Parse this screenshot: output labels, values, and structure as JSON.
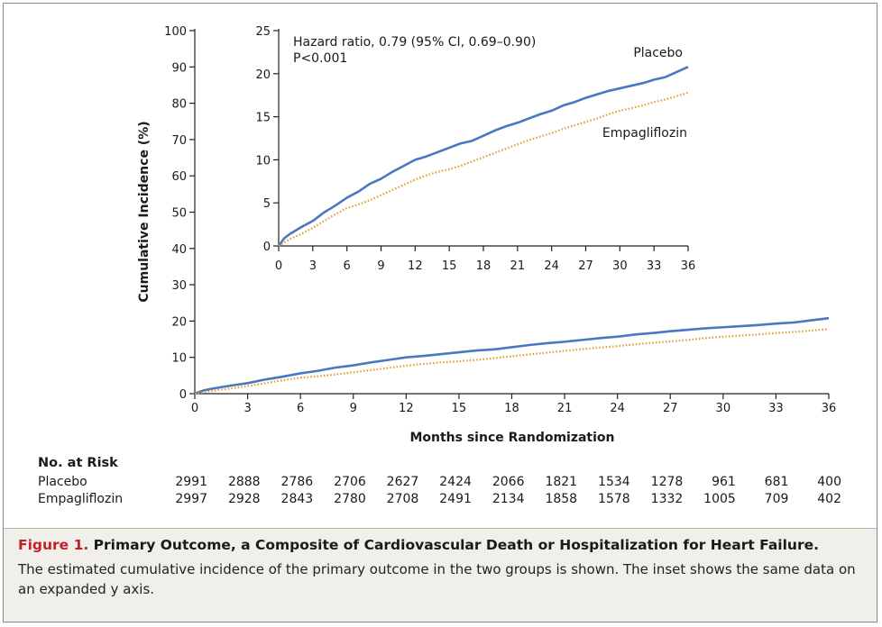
{
  "chart_data": {
    "type": "line",
    "ylabel": "Cumulative Incidence (%)",
    "xlabel": "Months since Randomization",
    "main_axes": {
      "xlim": [
        0,
        36
      ],
      "ylim": [
        0,
        100
      ],
      "xticks": [
        "0",
        "3",
        "6",
        "9",
        "12",
        "15",
        "18",
        "21",
        "24",
        "27",
        "30",
        "33",
        "36"
      ],
      "yticks": [
        "0",
        "10",
        "20",
        "30",
        "40",
        "50",
        "60",
        "70",
        "80",
        "90",
        "100"
      ]
    },
    "inset_axes": {
      "xlim": [
        0,
        36
      ],
      "ylim": [
        0,
        25
      ],
      "xticks": [
        "0",
        "3",
        "6",
        "9",
        "12",
        "15",
        "18",
        "21",
        "24",
        "27",
        "30",
        "33",
        "36"
      ],
      "yticks": [
        "0",
        "5",
        "10",
        "15",
        "20",
        "25"
      ]
    },
    "annotation": {
      "line1": "Hazard ratio, 0.79 (95% CI, 0.69–0.90)",
      "line2": "P<0.001"
    },
    "x": [
      0,
      0.5,
      1,
      2,
      3,
      4,
      5,
      6,
      7,
      8,
      9,
      10,
      11,
      12,
      13,
      14,
      15,
      16,
      17,
      18,
      19,
      20,
      21,
      22,
      23,
      24,
      25,
      26,
      27,
      28,
      29,
      30,
      31,
      32,
      33,
      34,
      35,
      36
    ],
    "series": [
      {
        "name": "Placebo",
        "color": "#4a78c0",
        "style": "solid",
        "values": [
          0,
          0.9,
          1.4,
          2.2,
          2.9,
          3.9,
          4.7,
          5.6,
          6.3,
          7.2,
          7.8,
          8.6,
          9.3,
          10.0,
          10.4,
          10.9,
          11.4,
          11.9,
          12.2,
          12.8,
          13.4,
          13.9,
          14.3,
          14.8,
          15.3,
          15.7,
          16.3,
          16.7,
          17.2,
          17.6,
          18.0,
          18.3,
          18.6,
          18.9,
          19.3,
          19.6,
          20.2,
          20.8
        ]
      },
      {
        "name": "Empagliflozin",
        "color": "#e39a2c",
        "style": "dotted",
        "values": [
          0,
          0.4,
          0.8,
          1.4,
          2.1,
          2.9,
          3.7,
          4.4,
          4.8,
          5.3,
          5.9,
          6.5,
          7.1,
          7.7,
          8.2,
          8.6,
          8.9,
          9.3,
          9.8,
          10.3,
          10.8,
          11.3,
          11.8,
          12.3,
          12.7,
          13.1,
          13.6,
          14.0,
          14.4,
          14.8,
          15.3,
          15.7,
          16.0,
          16.3,
          16.7,
          17.0,
          17.4,
          17.8
        ]
      }
    ]
  },
  "risk_table": {
    "title": "No. at Risk",
    "rows": [
      {
        "label": "Placebo",
        "values": [
          "2991",
          "2888",
          "2786",
          "2706",
          "2627",
          "2424",
          "2066",
          "1821",
          "1534",
          "1278",
          "961",
          "681",
          "400"
        ]
      },
      {
        "label": "Empagliflozin",
        "values": [
          "2997",
          "2928",
          "2843",
          "2780",
          "2708",
          "2491",
          "2134",
          "1858",
          "1578",
          "1332",
          "1005",
          "709",
          "402"
        ]
      }
    ]
  },
  "caption": {
    "label": "Figure 1.",
    "title": "Primary Outcome, a Composite of Cardiovascular Death or Hospitalization for Heart Failure.",
    "body": "The estimated cumulative incidence of the primary outcome in the two groups is shown. The inset shows the same data on an expanded y axis."
  }
}
